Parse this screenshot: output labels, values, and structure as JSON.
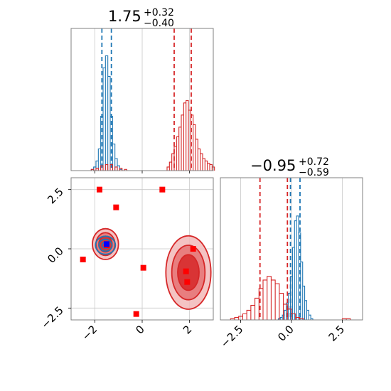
{
  "chart_data": [
    {
      "type": "histogram",
      "panel": "marginal-x",
      "title": {
        "median": "1.75",
        "plus": "+0.32",
        "minus": "−0.40"
      },
      "xlim": [
        -3.0,
        3.0
      ],
      "series": [
        {
          "color": "#1f77b4",
          "bins": [
            -2.1,
            -2.0,
            -1.9,
            -1.8,
            -1.7,
            -1.6,
            -1.5,
            -1.4,
            -1.3,
            -1.2,
            -1.1,
            -1.0,
            -0.9
          ],
          "counts": [
            0.01,
            0.03,
            0.08,
            0.18,
            0.45,
            0.85,
            0.95,
            0.78,
            0.45,
            0.22,
            0.1,
            0.04,
            0.01
          ],
          "quantile_lines": [
            -1.7,
            -1.3
          ]
        },
        {
          "color": "#d62728",
          "bins": [
            -2.1,
            -1.9,
            -1.7,
            -1.5,
            -1.3,
            -1.1,
            -0.9,
            -0.7,
            1.1,
            1.2,
            1.3,
            1.4,
            1.5,
            1.6,
            1.7,
            1.8,
            1.9,
            2.0,
            2.1,
            2.2,
            2.3,
            2.4,
            2.5,
            2.6,
            2.7,
            2.8,
            2.9,
            3.0
          ],
          "counts": [
            0.01,
            0.02,
            0.04,
            0.05,
            0.05,
            0.03,
            0.02,
            0.01,
            0.03,
            0.07,
            0.14,
            0.2,
            0.28,
            0.36,
            0.46,
            0.56,
            0.58,
            0.5,
            0.46,
            0.38,
            0.26,
            0.18,
            0.14,
            0.1,
            0.08,
            0.06,
            0.05,
            0.03
          ],
          "quantile_lines": [
            1.35,
            2.07
          ]
        }
      ],
      "grid": true
    },
    {
      "type": "scatter",
      "panel": "joint",
      "xlim": [
        -3.0,
        3.0
      ],
      "ylim": [
        -3.0,
        3.0
      ],
      "xticks": [
        "−2",
        "0",
        "2"
      ],
      "yticks": [
        "2.5",
        "0.0",
        "−2.5"
      ],
      "contours": [
        {
          "color": "#d62728",
          "center": [
            -1.55,
            0.2
          ],
          "radii": [
            [
              0.55,
              0.65
            ],
            [
              0.4,
              0.48
            ],
            [
              0.28,
              0.33
            ]
          ]
        },
        {
          "color": "#d62728",
          "center": [
            1.95,
            -1.0
          ],
          "radii": [
            [
              0.95,
              1.55
            ],
            [
              0.7,
              1.15
            ],
            [
              0.45,
              0.75
            ]
          ]
        },
        {
          "color": "#1f77b4",
          "center": [
            -1.55,
            0.15
          ],
          "radii": [
            [
              0.42,
              0.38
            ],
            [
              0.28,
              0.25
            ],
            [
              0.15,
              0.13
            ]
          ]
        }
      ],
      "points": {
        "color": "#ff0000",
        "x": [
          -1.8,
          -1.1,
          0.85,
          -2.5,
          0.05,
          2.15,
          1.85,
          1.9,
          -0.25,
          -1.5
        ],
        "y": [
          2.5,
          1.75,
          2.5,
          -0.45,
          -0.8,
          0.0,
          -0.95,
          -1.4,
          -2.75,
          0.15
        ]
      },
      "highlight_point": {
        "color": "#0000ff",
        "x": -1.5,
        "y": 0.2
      },
      "grid": true
    },
    {
      "type": "histogram",
      "panel": "marginal-y",
      "title": {
        "median": "−0.95",
        "plus": "+0.72",
        "minus": "−0.59"
      },
      "xlim": [
        -3.5,
        3.5
      ],
      "xticks": [
        "−2.5",
        "0.0",
        "2.5"
      ],
      "series": [
        {
          "color": "#1f77b4",
          "bins": [
            -0.6,
            -0.5,
            -0.4,
            -0.3,
            -0.2,
            -0.1,
            0.0,
            0.1,
            0.2,
            0.3,
            0.4,
            0.5,
            0.6,
            0.7,
            0.8,
            0.9,
            1.0
          ],
          "counts": [
            0.01,
            0.02,
            0.04,
            0.08,
            0.14,
            0.22,
            0.36,
            0.6,
            0.82,
            0.86,
            0.72,
            0.48,
            0.28,
            0.16,
            0.08,
            0.04,
            0.01
          ],
          "quantile_lines": [
            -0.05,
            0.42
          ]
        },
        {
          "color": "#d62728",
          "bins": [
            -2.9,
            -2.7,
            -2.5,
            -2.3,
            -2.1,
            -1.9,
            -1.7,
            -1.5,
            -1.3,
            -1.1,
            -0.9,
            -0.7,
            -0.5,
            -0.3,
            -0.1,
            0.1,
            0.3,
            0.5,
            2.6,
            2.8
          ],
          "counts": [
            0.01,
            0.02,
            0.03,
            0.05,
            0.08,
            0.12,
            0.18,
            0.26,
            0.33,
            0.36,
            0.33,
            0.3,
            0.22,
            0.13,
            0.09,
            0.05,
            0.02,
            0.01,
            0.01,
            0.01
          ],
          "quantile_lines": [
            -1.55,
            -0.2
          ]
        }
      ],
      "grid": true
    }
  ]
}
